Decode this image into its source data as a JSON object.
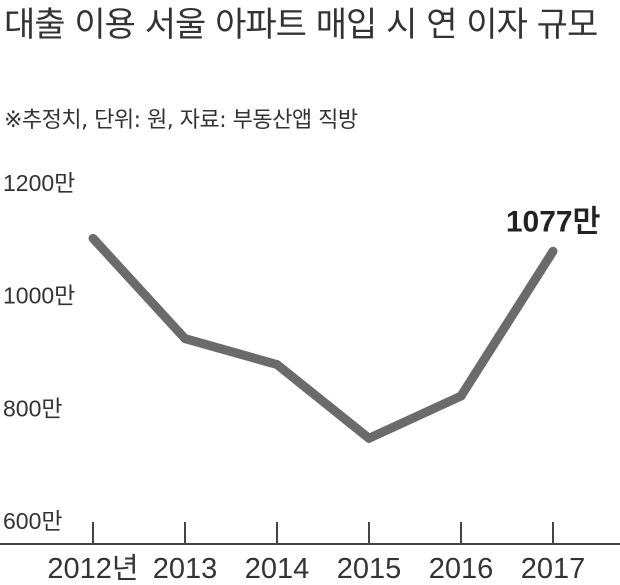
{
  "title": "대출 이용 서울 아파트 매입 시 연 이자 규모",
  "note": "※추정치, 단위: 원, 자료: 부동산앱 직방",
  "chart_data": {
    "type": "line",
    "categories": [
      "2012년",
      "2013",
      "2014",
      "2015",
      "2016",
      "2017"
    ],
    "values": [
      1100,
      922,
      876,
      745,
      820,
      1077
    ],
    "ylim": [
      600,
      1200
    ],
    "yticks": [
      600,
      800,
      1000,
      1200
    ],
    "ytick_labels": [
      "600만",
      "800만",
      "1000만",
      "1200만"
    ],
    "annotation": {
      "label": "1077만",
      "category": "2017"
    },
    "line_color": "#6b6b6b",
    "grid": false
  }
}
